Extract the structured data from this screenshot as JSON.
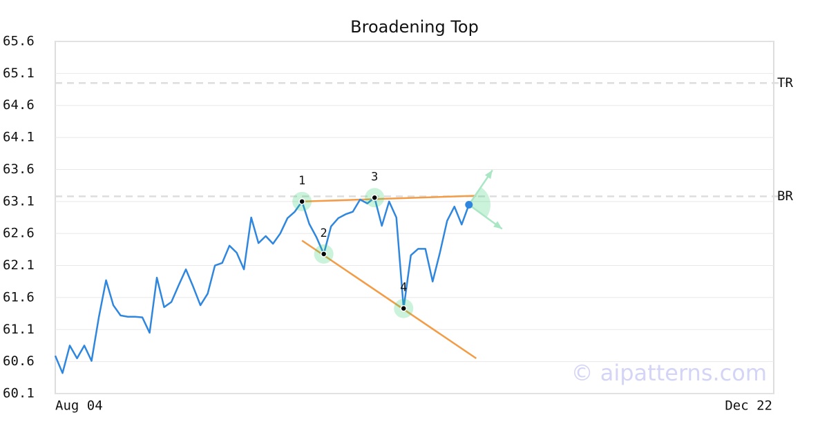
{
  "chart_data": {
    "type": "line",
    "title": "Broadening Top",
    "x": [
      0,
      1,
      2,
      3,
      4,
      5,
      6,
      7,
      8,
      9,
      10,
      11,
      12,
      13,
      14,
      15,
      16,
      17,
      18,
      19,
      20,
      21,
      22,
      23,
      24,
      25,
      26,
      27,
      28,
      29,
      30,
      31,
      32,
      33,
      34,
      35,
      36,
      37,
      38,
      39,
      40,
      41,
      42,
      43,
      44,
      45,
      46,
      47,
      48,
      49,
      50,
      51,
      52,
      53,
      54,
      55,
      56,
      57
    ],
    "values": [
      60.69,
      60.42,
      60.85,
      60.65,
      60.85,
      60.61,
      61.29,
      61.87,
      61.48,
      61.32,
      61.3,
      61.3,
      61.29,
      61.05,
      61.91,
      61.45,
      61.53,
      61.79,
      62.04,
      61.77,
      61.48,
      61.66,
      62.1,
      62.14,
      62.41,
      62.3,
      62.04,
      62.85,
      62.45,
      62.56,
      62.44,
      62.6,
      62.84,
      62.94,
      63.1,
      62.75,
      62.54,
      62.28,
      62.71,
      62.84,
      62.9,
      62.94,
      63.13,
      63.07,
      63.16,
      62.72,
      63.1,
      62.85,
      61.43,
      62.26,
      62.36,
      62.36,
      61.85,
      62.3,
      62.8,
      63.02,
      62.74,
      63.05
    ],
    "color": "#2e86de",
    "xlim": [
      0,
      99
    ],
    "xticks": [
      {
        "value": 0,
        "label": "Aug 04"
      },
      {
        "value": 99,
        "label": "Dec 22"
      }
    ],
    "ylim": [
      60.1,
      65.6
    ],
    "yticks": [
      60.1,
      60.6,
      61.1,
      61.6,
      62.1,
      62.6,
      63.1,
      63.6,
      64.1,
      64.6,
      65.1,
      65.6
    ],
    "grid": true,
    "pattern_points": [
      {
        "label": "1",
        "x": 34
      },
      {
        "label": "2",
        "x": 37
      },
      {
        "label": "3",
        "x": 44
      },
      {
        "label": "4",
        "x": 48
      }
    ],
    "trend_color": "#f39c45",
    "trend_lines": [
      {
        "x": [
          34,
          58
        ],
        "values": [
          63.1,
          63.19
        ]
      },
      {
        "x": [
          34,
          58
        ],
        "values": [
          62.49,
          60.65
        ]
      }
    ],
    "levels": [
      {
        "label": "TR",
        "value": 64.95
      },
      {
        "label": "BR",
        "value": 63.18
      }
    ],
    "watermark": "© aipatterns.com"
  }
}
